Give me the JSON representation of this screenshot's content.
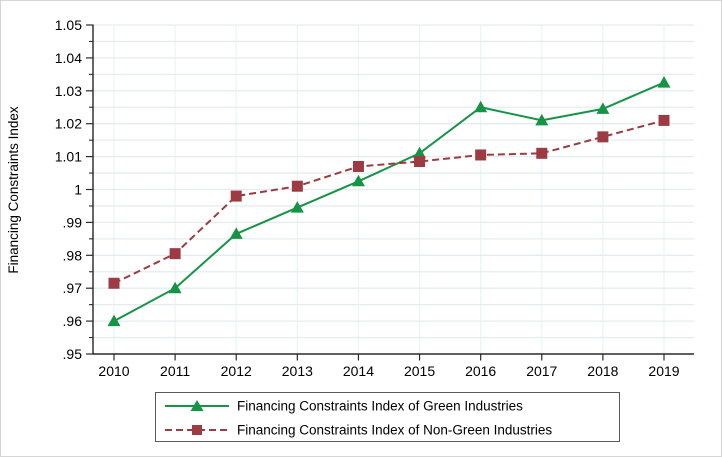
{
  "figure": {
    "background": "#ffffff",
    "outer_border_color": "#d6d6d6"
  },
  "chart_data": {
    "type": "line",
    "title": "",
    "xlabel": "",
    "ylabel": "Financing Constraints Index",
    "x": [
      2010,
      2011,
      2012,
      2013,
      2014,
      2015,
      2016,
      2017,
      2018,
      2019
    ],
    "series": [
      {
        "name": "Financing Constraints Index of Green Industries",
        "color": "#169446",
        "line_style": "solid",
        "marker": "triangle",
        "values": [
          0.96,
          0.97,
          0.9865,
          0.9945,
          1.0025,
          1.011,
          1.025,
          1.021,
          1.0245,
          1.0325
        ]
      },
      {
        "name": "Financing Constraints Index of Non-Green Industries",
        "color": "#9c3b42",
        "line_style": "dashed",
        "marker": "square",
        "values": [
          0.9715,
          0.9805,
          0.998,
          1.001,
          1.007,
          1.0085,
          1.0105,
          1.011,
          1.016,
          1.021
        ]
      }
    ],
    "ylim": [
      0.95,
      1.05
    ],
    "ytick_interval": 0.01,
    "ytick_minor_interval": 0.005,
    "ytick_labels": [
      "1.05",
      "1.04",
      "1.03",
      "1.02",
      "1.01",
      "1",
      ".99",
      ".98",
      ".97",
      ".96",
      ".95"
    ],
    "xtick_labels": [
      "2010",
      "2011",
      "2012",
      "2013",
      "2014",
      "2015",
      "2016",
      "2017",
      "2018",
      "2019"
    ],
    "grid": {
      "horizontal": true,
      "vertical": true,
      "h_color": "#e3edf1",
      "v_color": "#edf4f6"
    },
    "axis_color": "#000000",
    "tick_color": "#2b2b2b",
    "legend": {
      "position": "bottom",
      "border_color": "#5a5a5a",
      "background": "#ffffff"
    }
  }
}
